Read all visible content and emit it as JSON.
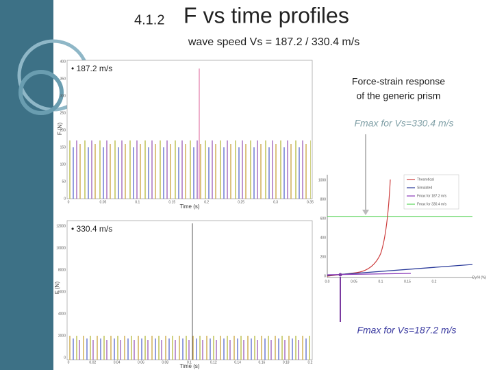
{
  "slide": {
    "number": "4.1.2",
    "title": "F vs time profiles",
    "subtitle": "wave speed Vs = 187.2 / 330.4 m/s",
    "top_chart": {
      "label": "• 187.2 m/s",
      "ylabel": "F (N)",
      "xlabel": "Time (s)",
      "xticks": [
        "0",
        "0.05",
        "0.1",
        "0.15",
        "0.2",
        "0.25",
        "0.3",
        "0.35"
      ],
      "yticks": [
        "400",
        "350",
        "300",
        "250",
        "200",
        "150",
        "100",
        "50",
        "0"
      ]
    },
    "bottom_chart": {
      "label": "• 330.4 m/s",
      "ylabel": "F (N)",
      "xlabel": "Time (s)",
      "xticks": [
        "0",
        "0.02",
        "0.04",
        "0.06",
        "0.08",
        "0.1",
        "0.12",
        "0.14",
        "0.16",
        "0.18",
        "0.2"
      ],
      "yticks": [
        "12000",
        "10000",
        "8000",
        "6000",
        "4000",
        "2000",
        "0"
      ]
    },
    "right_chart": {
      "title": [
        "Force-strain response",
        "of the generic prism"
      ],
      "xlabel": "Dy/H (%)",
      "xticks": [
        "0.0",
        "0.05",
        "0.1",
        "0.15",
        "0.2"
      ],
      "yticks": [
        "1000",
        "800",
        "600",
        "400",
        "200",
        "0"
      ],
      "legend": [
        "Theoretical",
        "Simulated",
        "Fmax for 187.2 m/s",
        "Fmax for 330.4 m/s"
      ],
      "annotation_top": "Fmax for Vs=330.4 m/s",
      "annotation_bottom": "Fmax for Vs=187.2 m/s"
    }
  }
}
